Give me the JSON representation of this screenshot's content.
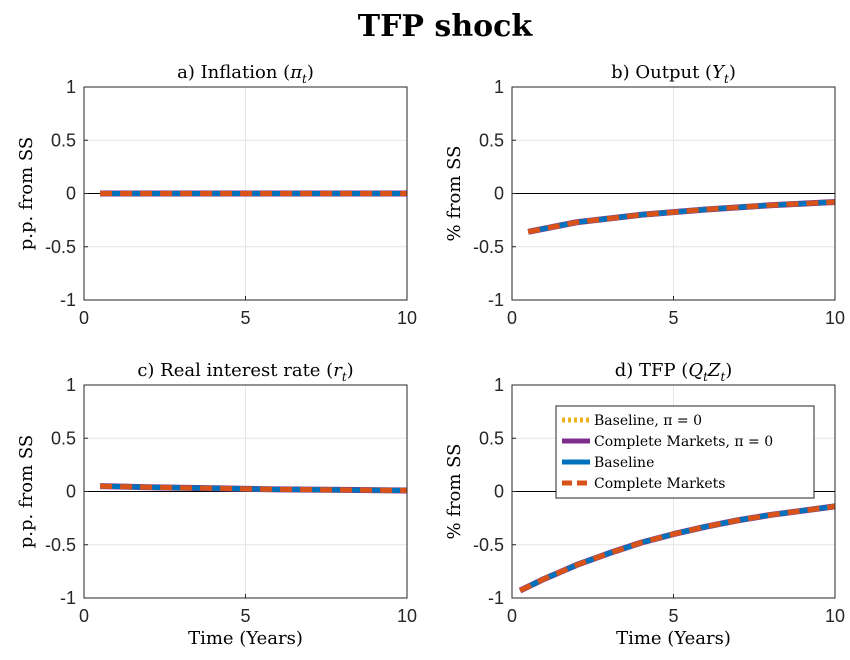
{
  "figure": {
    "title": "TFP shock"
  },
  "legend": {
    "entries": [
      {
        "label": "Baseline, π = 0",
        "color": "#EDB120",
        "style": "dotted"
      },
      {
        "label": "Complete Markets, π = 0",
        "color": "#7E2F8E",
        "style": "solid"
      },
      {
        "label": "Baseline",
        "color": "#0072BD",
        "style": "solid"
      },
      {
        "label": "Complete Markets",
        "color": "#D95319",
        "style": "dashed"
      }
    ]
  },
  "colors": {
    "baseline_pi0": "#EDB120",
    "complete_pi0": "#7E2F8E",
    "baseline": "#0072BD",
    "complete": "#D95319",
    "zero_line": "#000000",
    "grid": "#e6e6e6",
    "axis": "#262626"
  },
  "chart_data": [
    {
      "type": "line",
      "title": "a) Inflation (π_t)",
      "title_text": "a) Inflation (",
      "title_sym": "π",
      "title_sub": "t",
      "title_tail": ")",
      "ylabel": "p.p. from SS",
      "xlabel": "",
      "xlim": [
        0,
        10
      ],
      "ylim": [
        -1,
        1
      ],
      "xticks": [
        0,
        5,
        10
      ],
      "yticks": [
        1,
        0.5,
        0,
        -0.5,
        -1
      ],
      "ytick_labels": [
        "1",
        "0.5",
        "0",
        "-0.5",
        "-1"
      ],
      "grid": true,
      "x": [
        0.5,
        10
      ],
      "series": [
        {
          "key": "baseline_pi0",
          "values": [
            0,
            0
          ]
        },
        {
          "key": "complete_pi0",
          "values": [
            0,
            0
          ]
        },
        {
          "key": "baseline",
          "values": [
            0,
            0
          ]
        },
        {
          "key": "complete",
          "values": [
            0,
            0
          ]
        }
      ]
    },
    {
      "type": "line",
      "title": "b) Output (Y_t)",
      "title_text": "b) Output (",
      "title_sym": "Y",
      "title_sub": "t",
      "title_tail": ")",
      "ylabel": "% from SS",
      "xlabel": "",
      "xlim": [
        0,
        10
      ],
      "ylim": [
        -1,
        1
      ],
      "xticks": [
        0,
        5,
        10
      ],
      "yticks": [
        1,
        0.5,
        0,
        -0.5,
        -1
      ],
      "ytick_labels": [
        "1",
        "0.5",
        "0",
        "-0.5",
        "-1"
      ],
      "grid": true,
      "x": [
        0.5,
        2,
        4,
        6,
        8,
        10
      ],
      "series": [
        {
          "key": "baseline_pi0",
          "values": [
            -0.36,
            -0.27,
            -0.2,
            -0.15,
            -0.11,
            -0.08
          ]
        },
        {
          "key": "complete_pi0",
          "values": [
            -0.36,
            -0.27,
            -0.2,
            -0.15,
            -0.11,
            -0.08
          ]
        },
        {
          "key": "baseline",
          "values": [
            -0.36,
            -0.27,
            -0.2,
            -0.15,
            -0.11,
            -0.08
          ]
        },
        {
          "key": "complete",
          "values": [
            -0.36,
            -0.27,
            -0.2,
            -0.15,
            -0.11,
            -0.08
          ]
        }
      ]
    },
    {
      "type": "line",
      "title": "c) Real interest rate (r_t)",
      "title_text": "c) Real interest rate (",
      "title_sym": "r",
      "title_sub": "t",
      "title_tail": ")",
      "ylabel": "p.p. from SS",
      "xlabel": "Time (Years)",
      "xlim": [
        0,
        10
      ],
      "ylim": [
        -1,
        1
      ],
      "xticks": [
        0,
        5,
        10
      ],
      "yticks": [
        1,
        0.5,
        0,
        -0.5,
        -1
      ],
      "ytick_labels": [
        "1",
        "0.5",
        "0",
        "-0.5",
        "-1"
      ],
      "grid": true,
      "x": [
        0.5,
        2,
        4,
        6,
        8,
        10
      ],
      "series": [
        {
          "key": "baseline_pi0",
          "values": [
            0.05,
            0.04,
            0.03,
            0.02,
            0.015,
            0.01
          ]
        },
        {
          "key": "complete_pi0",
          "values": [
            0.05,
            0.04,
            0.03,
            0.02,
            0.015,
            0.01
          ]
        },
        {
          "key": "baseline",
          "values": [
            0.05,
            0.04,
            0.03,
            0.02,
            0.015,
            0.01
          ]
        },
        {
          "key": "complete",
          "values": [
            0.05,
            0.04,
            0.03,
            0.02,
            0.015,
            0.01
          ]
        }
      ]
    },
    {
      "type": "line",
      "title": "d) TFP (Q_t Z_t)",
      "title_text": "d) TFP (",
      "title_sym": "Q",
      "title_sub": "t",
      "title_sym2": "Z",
      "title_sub2": "t",
      "title_tail": ")",
      "ylabel": "% from SS",
      "xlabel": "Time (Years)",
      "xlim": [
        0,
        10
      ],
      "ylim": [
        -1,
        1
      ],
      "xticks": [
        0,
        5,
        10
      ],
      "yticks": [
        1,
        0.5,
        0,
        -0.5,
        -1
      ],
      "ytick_labels": [
        "1",
        "0.5",
        "0",
        "-0.5",
        "-1"
      ],
      "grid": true,
      "legend_placement": "top-right",
      "x": [
        0.25,
        1,
        2,
        3,
        4,
        5,
        6,
        7,
        8,
        9,
        10
      ],
      "series": [
        {
          "key": "baseline_pi0",
          "values": [
            -0.93,
            -0.82,
            -0.69,
            -0.58,
            -0.48,
            -0.4,
            -0.33,
            -0.27,
            -0.22,
            -0.18,
            -0.14
          ]
        },
        {
          "key": "complete_pi0",
          "values": [
            -0.93,
            -0.82,
            -0.69,
            -0.58,
            -0.48,
            -0.4,
            -0.33,
            -0.27,
            -0.22,
            -0.18,
            -0.14
          ]
        },
        {
          "key": "baseline",
          "values": [
            -0.93,
            -0.82,
            -0.69,
            -0.58,
            -0.48,
            -0.4,
            -0.33,
            -0.27,
            -0.22,
            -0.18,
            -0.14
          ]
        },
        {
          "key": "complete",
          "values": [
            -0.93,
            -0.82,
            -0.69,
            -0.58,
            -0.48,
            -0.4,
            -0.33,
            -0.27,
            -0.22,
            -0.18,
            -0.14
          ]
        }
      ]
    }
  ]
}
